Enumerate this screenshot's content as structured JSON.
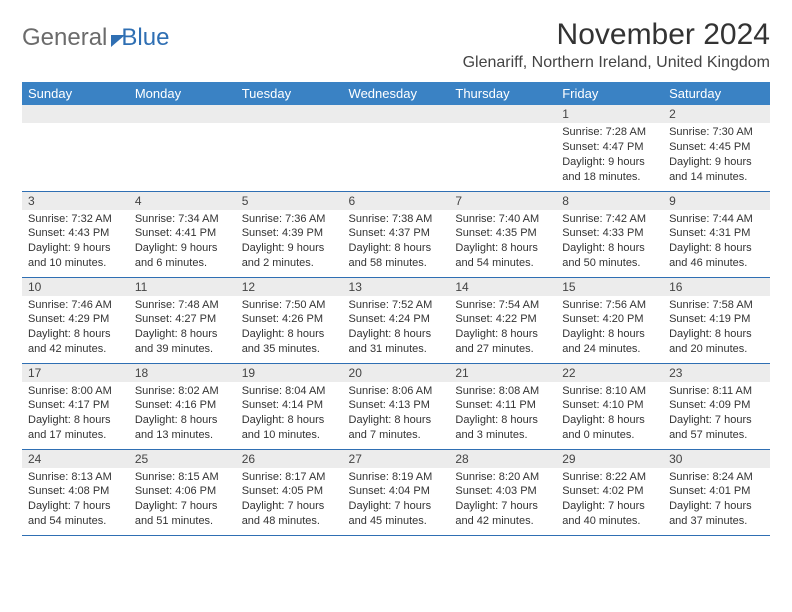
{
  "logo": {
    "word1": "General",
    "word2": "Blue"
  },
  "title": "November 2024",
  "location": "Glenariff, Northern Ireland, United Kingdom",
  "colors": {
    "header_bg": "#3a82c4",
    "header_text": "#ffffff",
    "daynum_bg": "#ececec",
    "rule": "#2f6fb3",
    "logo_gray": "#6b6b6b",
    "logo_blue": "#2f6fb3",
    "text": "#333333",
    "background": "#ffffff"
  },
  "weekdays": [
    "Sunday",
    "Monday",
    "Tuesday",
    "Wednesday",
    "Thursday",
    "Friday",
    "Saturday"
  ],
  "days": {
    "1": {
      "sunrise": "7:28 AM",
      "sunset": "4:47 PM",
      "dl_h": 9,
      "dl_m": 18
    },
    "2": {
      "sunrise": "7:30 AM",
      "sunset": "4:45 PM",
      "dl_h": 9,
      "dl_m": 14
    },
    "3": {
      "sunrise": "7:32 AM",
      "sunset": "4:43 PM",
      "dl_h": 9,
      "dl_m": 10
    },
    "4": {
      "sunrise": "7:34 AM",
      "sunset": "4:41 PM",
      "dl_h": 9,
      "dl_m": 6
    },
    "5": {
      "sunrise": "7:36 AM",
      "sunset": "4:39 PM",
      "dl_h": 9,
      "dl_m": 2
    },
    "6": {
      "sunrise": "7:38 AM",
      "sunset": "4:37 PM",
      "dl_h": 8,
      "dl_m": 58
    },
    "7": {
      "sunrise": "7:40 AM",
      "sunset": "4:35 PM",
      "dl_h": 8,
      "dl_m": 54
    },
    "8": {
      "sunrise": "7:42 AM",
      "sunset": "4:33 PM",
      "dl_h": 8,
      "dl_m": 50
    },
    "9": {
      "sunrise": "7:44 AM",
      "sunset": "4:31 PM",
      "dl_h": 8,
      "dl_m": 46
    },
    "10": {
      "sunrise": "7:46 AM",
      "sunset": "4:29 PM",
      "dl_h": 8,
      "dl_m": 42
    },
    "11": {
      "sunrise": "7:48 AM",
      "sunset": "4:27 PM",
      "dl_h": 8,
      "dl_m": 39
    },
    "12": {
      "sunrise": "7:50 AM",
      "sunset": "4:26 PM",
      "dl_h": 8,
      "dl_m": 35
    },
    "13": {
      "sunrise": "7:52 AM",
      "sunset": "4:24 PM",
      "dl_h": 8,
      "dl_m": 31
    },
    "14": {
      "sunrise": "7:54 AM",
      "sunset": "4:22 PM",
      "dl_h": 8,
      "dl_m": 27
    },
    "15": {
      "sunrise": "7:56 AM",
      "sunset": "4:20 PM",
      "dl_h": 8,
      "dl_m": 24
    },
    "16": {
      "sunrise": "7:58 AM",
      "sunset": "4:19 PM",
      "dl_h": 8,
      "dl_m": 20
    },
    "17": {
      "sunrise": "8:00 AM",
      "sunset": "4:17 PM",
      "dl_h": 8,
      "dl_m": 17
    },
    "18": {
      "sunrise": "8:02 AM",
      "sunset": "4:16 PM",
      "dl_h": 8,
      "dl_m": 13
    },
    "19": {
      "sunrise": "8:04 AM",
      "sunset": "4:14 PM",
      "dl_h": 8,
      "dl_m": 10
    },
    "20": {
      "sunrise": "8:06 AM",
      "sunset": "4:13 PM",
      "dl_h": 8,
      "dl_m": 7
    },
    "21": {
      "sunrise": "8:08 AM",
      "sunset": "4:11 PM",
      "dl_h": 8,
      "dl_m": 3
    },
    "22": {
      "sunrise": "8:10 AM",
      "sunset": "4:10 PM",
      "dl_h": 8,
      "dl_m": 0
    },
    "23": {
      "sunrise": "8:11 AM",
      "sunset": "4:09 PM",
      "dl_h": 7,
      "dl_m": 57
    },
    "24": {
      "sunrise": "8:13 AM",
      "sunset": "4:08 PM",
      "dl_h": 7,
      "dl_m": 54
    },
    "25": {
      "sunrise": "8:15 AM",
      "sunset": "4:06 PM",
      "dl_h": 7,
      "dl_m": 51
    },
    "26": {
      "sunrise": "8:17 AM",
      "sunset": "4:05 PM",
      "dl_h": 7,
      "dl_m": 48
    },
    "27": {
      "sunrise": "8:19 AM",
      "sunset": "4:04 PM",
      "dl_h": 7,
      "dl_m": 45
    },
    "28": {
      "sunrise": "8:20 AM",
      "sunset": "4:03 PM",
      "dl_h": 7,
      "dl_m": 42
    },
    "29": {
      "sunrise": "8:22 AM",
      "sunset": "4:02 PM",
      "dl_h": 7,
      "dl_m": 40
    },
    "30": {
      "sunrise": "8:24 AM",
      "sunset": "4:01 PM",
      "dl_h": 7,
      "dl_m": 37
    }
  },
  "weeks": [
    [
      null,
      null,
      null,
      null,
      null,
      1,
      2
    ],
    [
      3,
      4,
      5,
      6,
      7,
      8,
      9
    ],
    [
      10,
      11,
      12,
      13,
      14,
      15,
      16
    ],
    [
      17,
      18,
      19,
      20,
      21,
      22,
      23
    ],
    [
      24,
      25,
      26,
      27,
      28,
      29,
      30
    ]
  ],
  "labels": {
    "sunrise": "Sunrise:",
    "sunset": "Sunset:",
    "daylight": "Daylight:",
    "hours": "hours",
    "and": "and",
    "minutes": "minutes."
  }
}
